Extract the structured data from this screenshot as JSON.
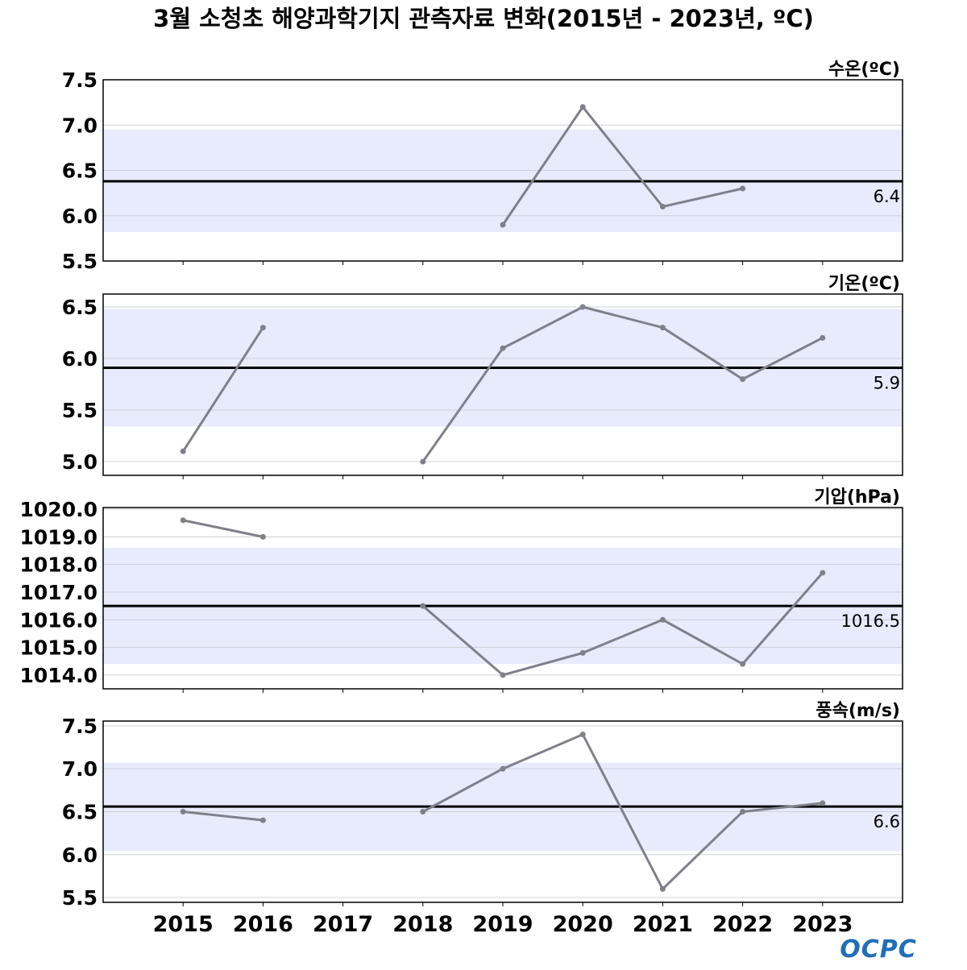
{
  "chart_data": {
    "type": "line",
    "title": "3월 소청초 해양과학기지 관측자료 변화(2015년 - 2023년, ºC)",
    "x": [
      2015,
      2016,
      2017,
      2018,
      2019,
      2020,
      2021,
      2022,
      2023
    ],
    "xtick_labels": [
      "2015",
      "2016",
      "2017",
      "2018",
      "2019",
      "2020",
      "2021",
      "2022",
      "2023"
    ],
    "xlim": [
      2014,
      2024
    ],
    "colors": {
      "line": "#80808a",
      "band": "#e8ebfc",
      "mean": "#000000"
    },
    "panels": [
      {
        "label": "수온(ºC)",
        "ylim": [
          5.5,
          7.5
        ],
        "yticks": [
          "7.5",
          "7.0",
          "6.5",
          "6.0",
          "5.5"
        ],
        "ytick_values": [
          7.5,
          7.0,
          6.5,
          6.0,
          5.5
        ],
        "values": [
          null,
          null,
          null,
          null,
          5.9,
          7.2,
          6.1,
          6.3,
          null
        ],
        "mean": 6.38,
        "mean_label": "6.4",
        "band": [
          5.82,
          6.95
        ]
      },
      {
        "label": "기온(ºC)",
        "ylim": [
          4.867,
          6.625
        ],
        "yticks": [
          "6.5",
          "6.0",
          "5.5",
          "5.0"
        ],
        "ytick_values": [
          6.5,
          6.0,
          5.5,
          5.0
        ],
        "values": [
          5.1,
          6.3,
          null,
          5.0,
          6.1,
          6.5,
          6.3,
          5.8,
          6.2
        ],
        "mean": 5.91,
        "mean_label": "5.9",
        "band": [
          5.34,
          6.48
        ]
      },
      {
        "label": "기압(hPa)",
        "ylim": [
          1013.5,
          1020.06
        ],
        "yticks": [
          "1020.0",
          "1019.0",
          "1018.0",
          "1017.0",
          "1016.0",
          "1015.0",
          "1014.0"
        ],
        "ytick_values": [
          1020,
          1019,
          1018,
          1017,
          1016,
          1015,
          1014
        ],
        "values": [
          1019.6,
          1019.0,
          null,
          1016.5,
          1014.0,
          1014.8,
          1016.0,
          1014.4,
          1017.7
        ],
        "mean": 1016.5,
        "mean_label": "1016.5",
        "band": [
          1014.4,
          1018.6
        ]
      },
      {
        "label": "풍속(m/s)",
        "ylim": [
          5.444,
          7.556
        ],
        "yticks": [
          "7.5",
          "7.0",
          "6.5",
          "6.0",
          "5.5"
        ],
        "ytick_values": [
          7.5,
          7.0,
          6.5,
          6.0,
          5.5
        ],
        "values": [
          6.5,
          6.4,
          null,
          6.5,
          7.0,
          7.4,
          5.6,
          6.5,
          6.6
        ],
        "mean": 6.56,
        "mean_label": "6.6",
        "band": [
          6.04,
          7.07
        ]
      }
    ],
    "logo": "OCPC"
  }
}
